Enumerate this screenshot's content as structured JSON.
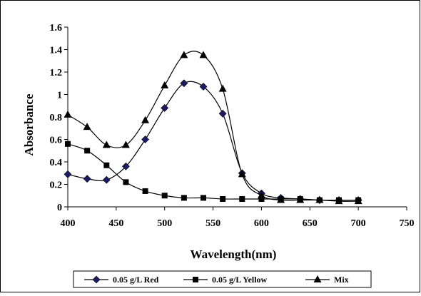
{
  "chart_data": {
    "type": "line",
    "title": "",
    "xlabel": "Wavelength(nm)",
    "ylabel": "Absorbance",
    "xlim": [
      400,
      750
    ],
    "ylim": [
      0,
      1.6
    ],
    "x_ticks": [
      "400",
      "450",
      "500",
      "550",
      "600",
      "650",
      "700",
      "750"
    ],
    "y_ticks": [
      "0",
      "0.2",
      "0.4",
      "0.6",
      "0.8",
      "1",
      "1.2",
      "1.4",
      "1.6"
    ],
    "grid": false,
    "legend_position": "bottom",
    "x": [
      400,
      420,
      440,
      460,
      480,
      500,
      520,
      540,
      560,
      580,
      600,
      620,
      640,
      660,
      680,
      700
    ],
    "series": [
      {
        "name": "0.05 g/L Red",
        "marker": "diamond",
        "values": [
          0.29,
          0.25,
          0.24,
          0.36,
          0.6,
          0.88,
          1.1,
          1.07,
          0.83,
          0.3,
          0.12,
          0.08,
          0.07,
          0.06,
          0.06,
          0.06
        ]
      },
      {
        "name": "0.05 g/L Yellow",
        "marker": "square",
        "values": [
          0.56,
          0.5,
          0.37,
          0.22,
          0.14,
          0.1,
          0.08,
          0.08,
          0.07,
          0.07,
          0.07,
          0.07,
          0.07,
          0.06,
          0.06,
          0.06
        ]
      },
      {
        "name": "Mix",
        "marker": "triangle",
        "values": [
          0.82,
          0.71,
          0.55,
          0.55,
          0.77,
          1.08,
          1.35,
          1.35,
          1.05,
          0.29,
          0.1,
          0.06,
          0.06,
          0.06,
          0.05,
          0.05
        ]
      }
    ],
    "colors": {
      "line": "#000000",
      "background": "#ffffff"
    }
  }
}
